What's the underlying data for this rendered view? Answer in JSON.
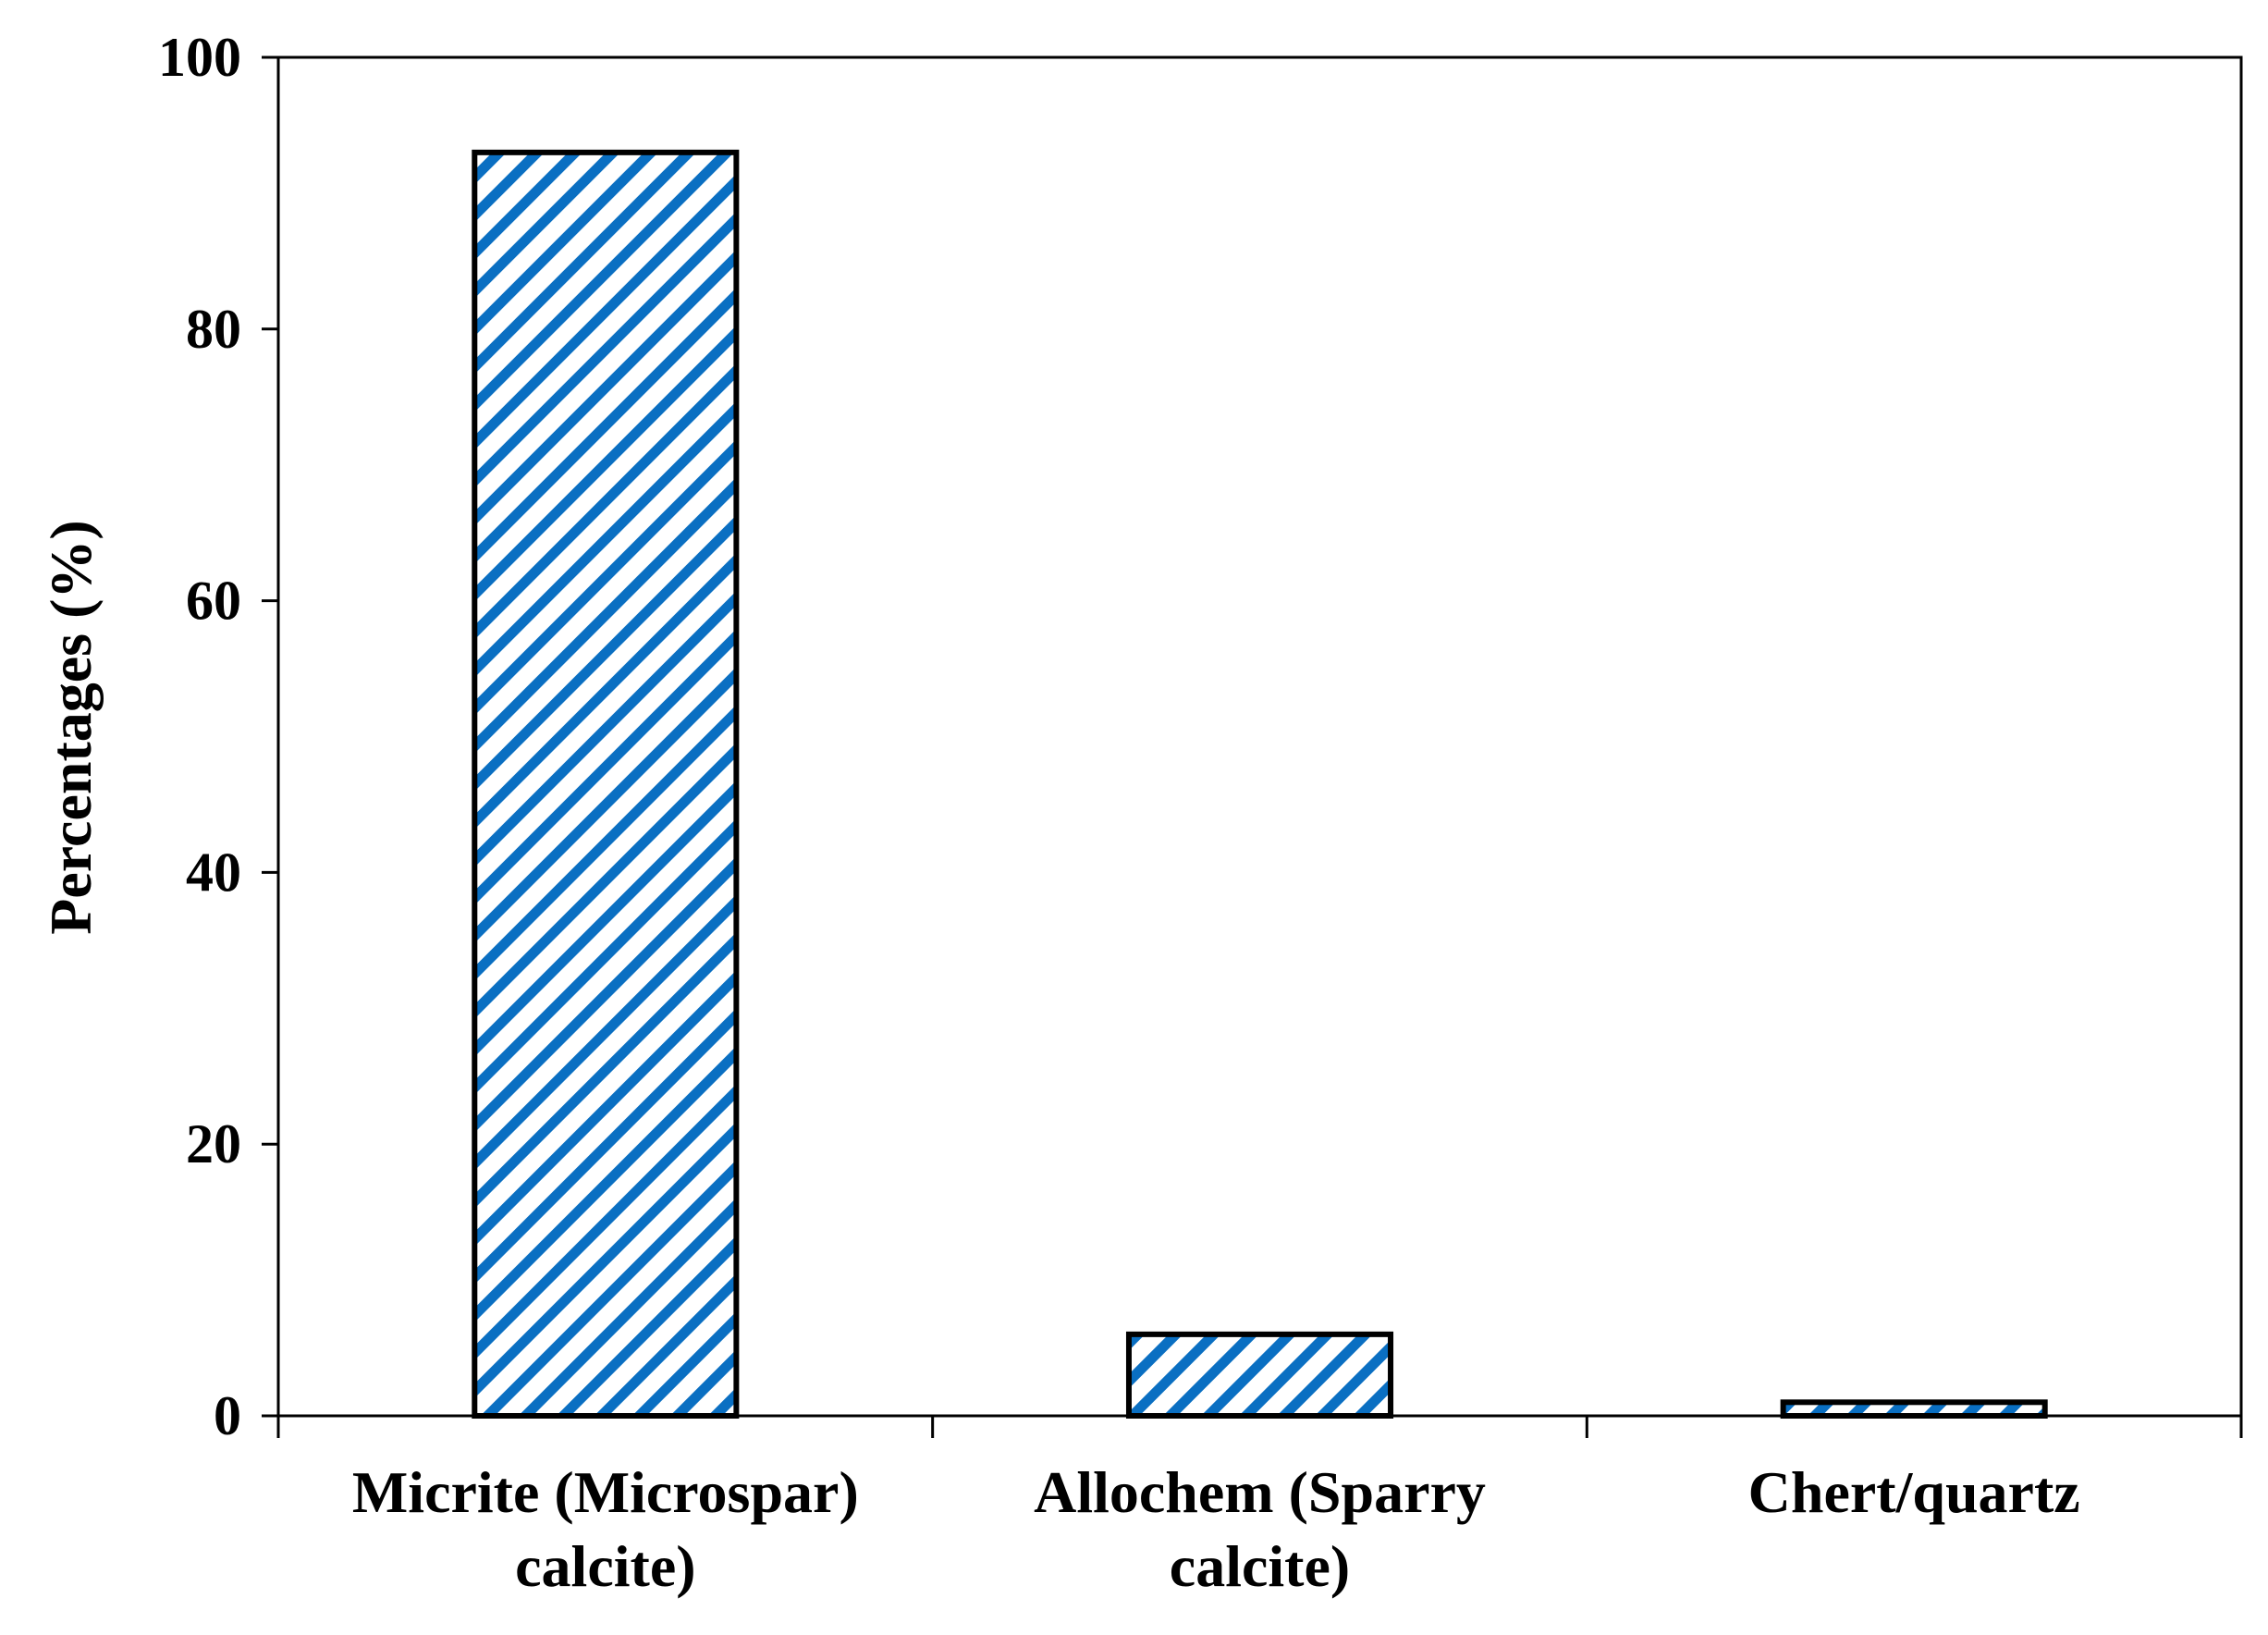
{
  "chart_data": {
    "type": "bar",
    "title": "",
    "xlabel": "",
    "ylabel": "Percentages (%)",
    "ylim": [
      0,
      100
    ],
    "yticks": [
      0,
      20,
      40,
      60,
      80,
      100
    ],
    "categories": [
      [
        "Micrite (Microspar)",
        "calcite)"
      ],
      [
        "Allochem (Sparry",
        "calcite)"
      ],
      [
        "Chert/quartz"
      ]
    ],
    "values": [
      93,
      6,
      1
    ],
    "grid": false,
    "legend": "none",
    "bar_fill": "diagonal-hatch",
    "colors": {
      "hatch": "#0a6fc2",
      "bar_background": "#ffffff",
      "outline": "#000000",
      "axis": "#000000"
    }
  }
}
